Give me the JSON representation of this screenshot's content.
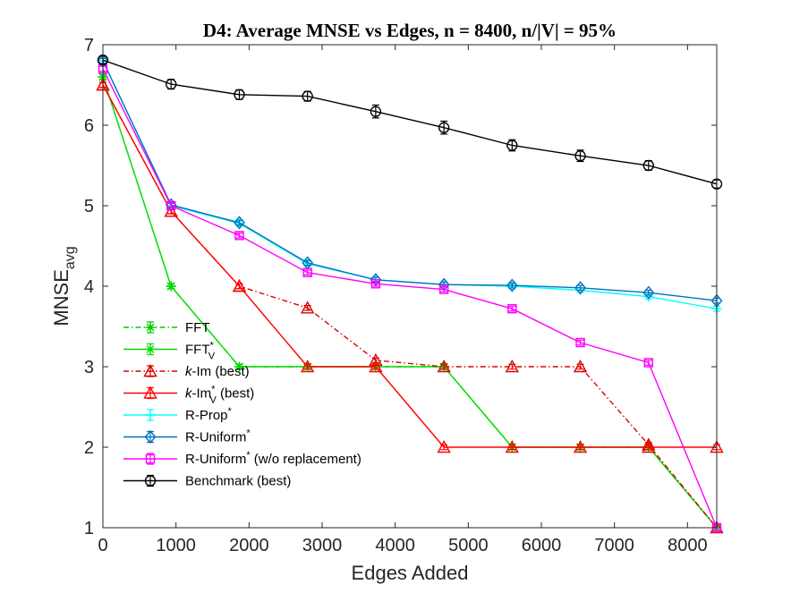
{
  "chart_data": {
    "type": "line",
    "title": "D4: Average MNSE vs Edges, n = 8400, n/|V| = 95%",
    "xlabel": "Edges Added",
    "ylabel": "MNSE",
    "ylabel_sub": "avg",
    "xlim": [
      0,
      8400
    ],
    "ylim": [
      1,
      7
    ],
    "xticks": [
      0,
      1000,
      2000,
      3000,
      4000,
      5000,
      6000,
      7000,
      8000
    ],
    "yticks": [
      1,
      2,
      3,
      4,
      5,
      6,
      7
    ],
    "grid": false,
    "legend_position": "bottom-left",
    "x": [
      0,
      933,
      1867,
      2800,
      3733,
      4667,
      5600,
      6533,
      7467,
      8400
    ],
    "series": [
      {
        "name": "FFT",
        "color": "#00cc00",
        "dash": "dashdot",
        "marker": "asterisk",
        "values": [
          6.6,
          4.0,
          3.0,
          3.0,
          3.0,
          3.0,
          2.0,
          2.0,
          2.0,
          1.0
        ]
      },
      {
        "name": "FFT",
        "name_sup": "*",
        "name_sub": "V",
        "color": "#00dd00",
        "dash": "solid",
        "marker": "asterisk",
        "values": [
          6.6,
          4.0,
          3.0,
          3.0,
          3.0,
          3.0,
          2.0,
          2.0,
          2.0,
          1.0
        ]
      },
      {
        "name_pre": "k",
        "name": "-Im (best)",
        "color": "#dd0000",
        "dash": "dashdot",
        "marker": "triangle",
        "values": [
          6.5,
          4.93,
          4.0,
          3.73,
          3.08,
          3.0,
          3.0,
          3.0,
          2.03,
          1.0
        ]
      },
      {
        "name_pre": "k",
        "name": "-Im",
        "name_sup": "*",
        "name_sub": "V",
        "name_post": " (best)",
        "color": "#ff0000",
        "dash": "solid",
        "marker": "triangle",
        "values": [
          6.5,
          4.93,
          4.0,
          3.0,
          3.0,
          2.0,
          2.0,
          2.0,
          2.0,
          2.0
        ]
      },
      {
        "name": "R-Prop",
        "name_sup": "*",
        "color": "#00ffff",
        "dash": "solid",
        "marker": "plus",
        "values": [
          6.8,
          5.0,
          4.78,
          4.28,
          4.08,
          4.02,
          4.0,
          3.95,
          3.87,
          3.72
        ]
      },
      {
        "name": "R-Uniform",
        "name_sup": "*",
        "color": "#0072bd",
        "dash": "solid",
        "marker": "diamond",
        "values": [
          6.8,
          5.01,
          4.79,
          4.29,
          4.08,
          4.02,
          4.01,
          3.98,
          3.92,
          3.82
        ]
      },
      {
        "name": "R-Uniform",
        "name_sup": "*",
        "name_post": " (w/o replacement)",
        "color": "#ff00ff",
        "dash": "solid",
        "marker": "square",
        "values": [
          6.7,
          5.0,
          4.63,
          4.17,
          4.03,
          3.96,
          3.72,
          3.3,
          3.05,
          1.0
        ]
      },
      {
        "name": "Benchmark (best)",
        "color": "#000000",
        "dash": "solid",
        "marker": "circle",
        "values": [
          6.81,
          6.51,
          6.38,
          6.36,
          6.17,
          5.97,
          5.75,
          5.62,
          5.5,
          5.27
        ],
        "errors": [
          0.05,
          0.06,
          0.06,
          0.06,
          0.08,
          0.08,
          0.07,
          0.07,
          0.06,
          0.05
        ]
      }
    ]
  }
}
